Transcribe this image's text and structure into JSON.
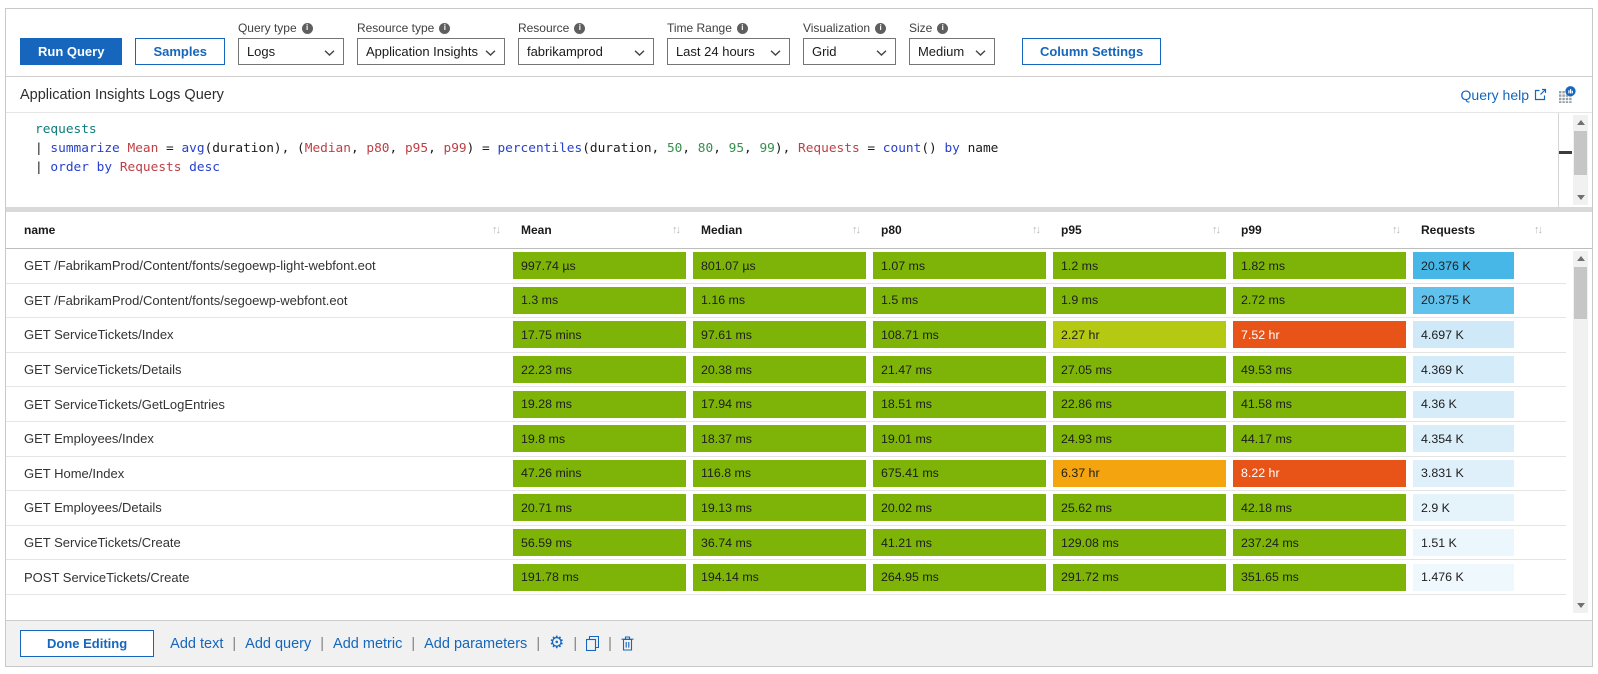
{
  "palette": {
    "accent": "#1566BC",
    "green": "#7EB408",
    "yellow_green": "#B6C912",
    "amber": "#F4A40F",
    "red": "#E85418",
    "blue_1": "#47B7E8",
    "blue_2": "#61C3ED",
    "blue_3": "#CFE9F8",
    "blue_4": "#D4EBF9",
    "blue_5": "#D7ECF9",
    "blue_6": "#DAEEFA",
    "blue_7": "#DFF0FA",
    "blue_8": "#E5F3FB",
    "blue_9": "#ECF7FD",
    "blue_10": "#EEF8FD",
    "kql_table": "#0E7C7B",
    "kql_keyword": "#2741CE",
    "kql_name": "#BE3F45",
    "kql_number": "#368F4D",
    "kql_plain": "#1B1B1B"
  },
  "icons": {
    "info": "info-icon",
    "chevron": "chevron-down-icon",
    "sort": "sort-arrows-icon",
    "external_link": "external-link-icon",
    "analytics": "open-in-analytics-icon",
    "gear": "gear-icon",
    "copy": "copy-icon",
    "trash": "trash-icon"
  },
  "toolbar": {
    "run_query": "Run Query",
    "samples": "Samples",
    "column_settings": "Column Settings",
    "dropdowns": [
      {
        "label": "Query type",
        "value": "Logs"
      },
      {
        "label": "Resource type",
        "value": "Application Insights"
      },
      {
        "label": "Resource",
        "value": "fabrikamprod"
      },
      {
        "label": "Time Range",
        "value": "Last 24 hours"
      },
      {
        "label": "Visualization",
        "value": "Grid"
      },
      {
        "label": "Size",
        "value": "Medium"
      }
    ]
  },
  "header": {
    "title": "Application Insights Logs Query",
    "query_help": "Query help"
  },
  "query": {
    "lines": [
      [
        {
          "t": "requests",
          "k": "table"
        }
      ],
      [
        {
          "t": "| ",
          "k": "plain"
        },
        {
          "t": "summarize",
          "k": "keyword"
        },
        {
          "t": " ",
          "k": "plain"
        },
        {
          "t": "Mean",
          "k": "name"
        },
        {
          "t": " = ",
          "k": "plain"
        },
        {
          "t": "avg",
          "k": "keyword"
        },
        {
          "t": "(duration), (",
          "k": "plain"
        },
        {
          "t": "Median",
          "k": "name"
        },
        {
          "t": ", ",
          "k": "plain"
        },
        {
          "t": "p80",
          "k": "name"
        },
        {
          "t": ", ",
          "k": "plain"
        },
        {
          "t": "p95",
          "k": "name"
        },
        {
          "t": ", ",
          "k": "plain"
        },
        {
          "t": "p99",
          "k": "name"
        },
        {
          "t": ") = ",
          "k": "plain"
        },
        {
          "t": "percentiles",
          "k": "keyword"
        },
        {
          "t": "(duration, ",
          "k": "plain"
        },
        {
          "t": "50",
          "k": "number"
        },
        {
          "t": ", ",
          "k": "plain"
        },
        {
          "t": "80",
          "k": "number"
        },
        {
          "t": ", ",
          "k": "plain"
        },
        {
          "t": "95",
          "k": "number"
        },
        {
          "t": ", ",
          "k": "plain"
        },
        {
          "t": "99",
          "k": "number"
        },
        {
          "t": "), ",
          "k": "plain"
        },
        {
          "t": "Requests",
          "k": "name"
        },
        {
          "t": " = ",
          "k": "plain"
        },
        {
          "t": "count",
          "k": "keyword"
        },
        {
          "t": "() ",
          "k": "plain"
        },
        {
          "t": "by",
          "k": "keyword"
        },
        {
          "t": " name",
          "k": "plain"
        }
      ],
      [
        {
          "t": "| ",
          "k": "plain"
        },
        {
          "t": "order",
          "k": "keyword"
        },
        {
          "t": " ",
          "k": "plain"
        },
        {
          "t": "by",
          "k": "keyword"
        },
        {
          "t": " ",
          "k": "plain"
        },
        {
          "t": "Requests",
          "k": "name"
        },
        {
          "t": " ",
          "k": "plain"
        },
        {
          "t": "desc",
          "k": "keyword"
        }
      ]
    ]
  },
  "grid": {
    "columns": [
      "name",
      "Mean",
      "Median",
      "p80",
      "p95",
      "p99",
      "Requests"
    ],
    "rows": [
      {
        "name": "GET /FabrikamProd/Content/fonts/segoewp-light-webfont.eot",
        "cells": [
          {
            "v": "997.74 µs",
            "c": "green"
          },
          {
            "v": "801.07 µs",
            "c": "green"
          },
          {
            "v": "1.07 ms",
            "c": "green"
          },
          {
            "v": "1.2 ms",
            "c": "green"
          },
          {
            "v": "1.82 ms",
            "c": "green"
          },
          {
            "v": "20.376 K",
            "c": "blue_1"
          }
        ]
      },
      {
        "name": "GET /FabrikamProd/Content/fonts/segoewp-webfont.eot",
        "cells": [
          {
            "v": "1.3 ms",
            "c": "green"
          },
          {
            "v": "1.16 ms",
            "c": "green"
          },
          {
            "v": "1.5 ms",
            "c": "green"
          },
          {
            "v": "1.9 ms",
            "c": "green"
          },
          {
            "v": "2.72 ms",
            "c": "green"
          },
          {
            "v": "20.375 K",
            "c": "blue_2"
          }
        ]
      },
      {
        "name": "GET ServiceTickets/Index",
        "cells": [
          {
            "v": "17.75 mins",
            "c": "green"
          },
          {
            "v": "97.61 ms",
            "c": "green"
          },
          {
            "v": "108.71 ms",
            "c": "green"
          },
          {
            "v": "2.27 hr",
            "c": "yellow_green"
          },
          {
            "v": "7.52 hr",
            "c": "red"
          },
          {
            "v": "4.697 K",
            "c": "blue_3"
          }
        ]
      },
      {
        "name": "GET ServiceTickets/Details",
        "cells": [
          {
            "v": "22.23 ms",
            "c": "green"
          },
          {
            "v": "20.38 ms",
            "c": "green"
          },
          {
            "v": "21.47 ms",
            "c": "green"
          },
          {
            "v": "27.05 ms",
            "c": "green"
          },
          {
            "v": "49.53 ms",
            "c": "green"
          },
          {
            "v": "4.369 K",
            "c": "blue_4"
          }
        ]
      },
      {
        "name": "GET ServiceTickets/GetLogEntries",
        "cells": [
          {
            "v": "19.28 ms",
            "c": "green"
          },
          {
            "v": "17.94 ms",
            "c": "green"
          },
          {
            "v": "18.51 ms",
            "c": "green"
          },
          {
            "v": "22.86 ms",
            "c": "green"
          },
          {
            "v": "41.58 ms",
            "c": "green"
          },
          {
            "v": "4.36 K",
            "c": "blue_5"
          }
        ]
      },
      {
        "name": "GET Employees/Index",
        "cells": [
          {
            "v": "19.8 ms",
            "c": "green"
          },
          {
            "v": "18.37 ms",
            "c": "green"
          },
          {
            "v": "19.01 ms",
            "c": "green"
          },
          {
            "v": "24.93 ms",
            "c": "green"
          },
          {
            "v": "44.17 ms",
            "c": "green"
          },
          {
            "v": "4.354 K",
            "c": "blue_6"
          }
        ]
      },
      {
        "name": "GET Home/Index",
        "cells": [
          {
            "v": "47.26 mins",
            "c": "green"
          },
          {
            "v": "116.8 ms",
            "c": "green"
          },
          {
            "v": "675.41 ms",
            "c": "green"
          },
          {
            "v": "6.37 hr",
            "c": "amber"
          },
          {
            "v": "8.22 hr",
            "c": "red"
          },
          {
            "v": "3.831 K",
            "c": "blue_7"
          }
        ]
      },
      {
        "name": "GET Employees/Details",
        "cells": [
          {
            "v": "20.71 ms",
            "c": "green"
          },
          {
            "v": "19.13 ms",
            "c": "green"
          },
          {
            "v": "20.02 ms",
            "c": "green"
          },
          {
            "v": "25.62 ms",
            "c": "green"
          },
          {
            "v": "42.18 ms",
            "c": "green"
          },
          {
            "v": "2.9 K",
            "c": "blue_8"
          }
        ]
      },
      {
        "name": "GET ServiceTickets/Create",
        "cells": [
          {
            "v": "56.59 ms",
            "c": "green"
          },
          {
            "v": "36.74 ms",
            "c": "green"
          },
          {
            "v": "41.21 ms",
            "c": "green"
          },
          {
            "v": "129.08 ms",
            "c": "green"
          },
          {
            "v": "237.24 ms",
            "c": "green"
          },
          {
            "v": "1.51 K",
            "c": "blue_9"
          }
        ]
      },
      {
        "name": "POST ServiceTickets/Create",
        "cells": [
          {
            "v": "191.78 ms",
            "c": "green"
          },
          {
            "v": "194.14 ms",
            "c": "green"
          },
          {
            "v": "264.95 ms",
            "c": "green"
          },
          {
            "v": "291.72 ms",
            "c": "green"
          },
          {
            "v": "351.65 ms",
            "c": "green"
          },
          {
            "v": "1.476 K",
            "c": "blue_10"
          }
        ]
      }
    ]
  },
  "footer": {
    "done_editing": "Done Editing",
    "links": [
      "Add text",
      "Add query",
      "Add metric",
      "Add parameters"
    ],
    "icons": [
      "gear",
      "copy",
      "trash"
    ]
  }
}
